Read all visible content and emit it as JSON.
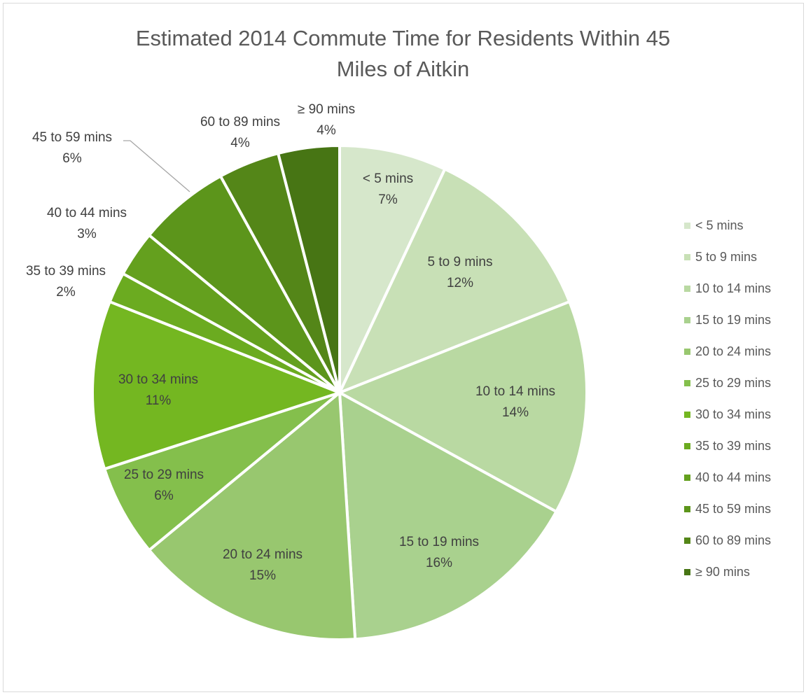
{
  "chart_data": {
    "type": "pie",
    "title_lines": [
      "Estimated 2014 Commute Time for Residents Within 45",
      "Miles of Aitkin"
    ],
    "legend_position": "right",
    "slices": [
      {
        "label": "< 5 mins",
        "value": 7,
        "pct_label": "7%",
        "color": "#d6e7cb"
      },
      {
        "label": "5 to 9 mins",
        "value": 12,
        "pct_label": "12%",
        "color": "#c8e0b6"
      },
      {
        "label": "10 to 14 mins",
        "value": 14,
        "pct_label": "14%",
        "color": "#b9d9a2"
      },
      {
        "label": "15 to 19 mins",
        "value": 16,
        "pct_label": "16%",
        "color": "#a9d18e"
      },
      {
        "label": "20 to 24 mins",
        "value": 15,
        "pct_label": "15%",
        "color": "#98c76f"
      },
      {
        "label": "25 to 29 mins",
        "value": 6,
        "pct_label": "6%",
        "color": "#84bf4c"
      },
      {
        "label": "30 to 34 mins",
        "value": 11,
        "pct_label": "11%",
        "color": "#74b721"
      },
      {
        "label": "35 to 39 mins",
        "value": 2,
        "pct_label": "2%",
        "color": "#6bab20"
      },
      {
        "label": "40 to 44 mins",
        "value": 3,
        "pct_label": "3%",
        "color": "#64a01e"
      },
      {
        "label": "45 to 59 mins",
        "value": 6,
        "pct_label": "6%",
        "color": "#5c951b"
      },
      {
        "label": "60 to 89 mins",
        "value": 4,
        "pct_label": "4%",
        "color": "#548618"
      },
      {
        "label": "≥ 90 mins",
        "value": 4,
        "pct_label": "4%",
        "color": "#477514"
      }
    ]
  }
}
